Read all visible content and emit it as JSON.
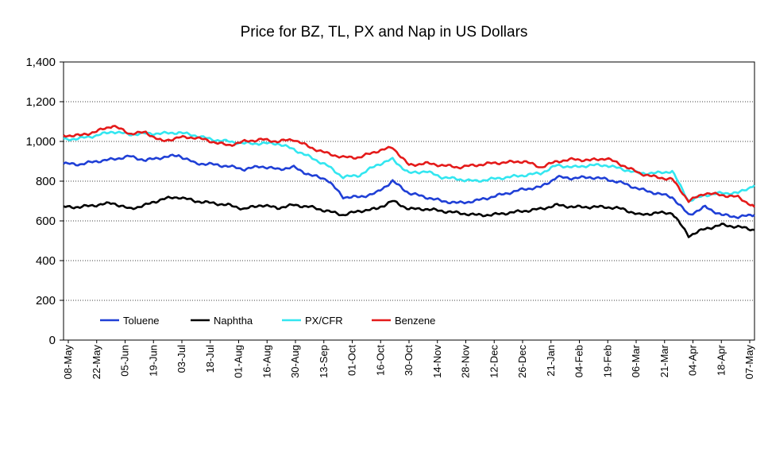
{
  "chart_data": {
    "type": "line",
    "title": "Price for BZ, TL, PX and Nap in US Dollars",
    "xlabel": "",
    "ylabel": "",
    "ylim": [
      0,
      1400
    ],
    "yticks": [
      "0",
      "200",
      "400",
      "600",
      "800",
      "1,000",
      "1,200",
      "1,400"
    ],
    "ytick_values": [
      0,
      200,
      400,
      600,
      800,
      1000,
      1200,
      1400
    ],
    "xticks": [
      "08-May",
      "22-May",
      "05-Jun",
      "19-Jun",
      "03-Jul",
      "18-Jul",
      "01-Aug",
      "16-Aug",
      "30-Aug",
      "13-Sep",
      "01-Oct",
      "16-Oct",
      "30-Oct",
      "14-Nov",
      "28-Nov",
      "12-Dec",
      "26-Dec",
      "21-Jan",
      "04-Feb",
      "19-Feb",
      "06-Mar",
      "21-Mar",
      "04-Apr",
      "18-Apr",
      "07-May"
    ],
    "grid": "horizontal dotted",
    "legend_position": "bottom-left inside",
    "series": [
      {
        "name": "Toluene",
        "color": "#1f3fd6",
        "values": [
          888,
          885,
          900,
          910,
          925,
          905,
          920,
          930,
          890,
          885,
          875,
          860,
          875,
          860,
          870,
          830,
          810,
          720,
          720,
          740,
          800,
          740,
          720,
          700,
          690,
          700,
          720,
          740,
          760,
          770,
          820,
          815,
          820,
          810,
          790,
          760,
          740,
          720,
          630,
          670,
          630,
          620,
          630
        ]
      },
      {
        "name": "Naphtha",
        "color": "#000000",
        "values": [
          670,
          670,
          680,
          690,
          660,
          680,
          710,
          720,
          700,
          690,
          680,
          660,
          680,
          665,
          680,
          670,
          650,
          630,
          650,
          660,
          700,
          660,
          660,
          650,
          640,
          630,
          630,
          640,
          650,
          660,
          680,
          670,
          670,
          670,
          660,
          630,
          640,
          640,
          525,
          560,
          580,
          570,
          555
        ]
      },
      {
        "name": "PX/CFR",
        "color": "#33e6f0",
        "values": [
          1010,
          1015,
          1030,
          1050,
          1035,
          1040,
          1040,
          1045,
          1030,
          1010,
          1000,
          990,
          990,
          990,
          960,
          920,
          880,
          820,
          830,
          880,
          910,
          840,
          850,
          820,
          810,
          800,
          810,
          820,
          830,
          840,
          880,
          870,
          880,
          880,
          860,
          840,
          840,
          850,
          700,
          730,
          740,
          740,
          780
        ]
      },
      {
        "name": "Benzene",
        "color": "#e41a1a",
        "values": [
          1030,
          1030,
          1050,
          1080,
          1040,
          1045,
          1000,
          1020,
          1020,
          1000,
          980,
          1000,
          1010,
          1000,
          1010,
          970,
          940,
          920,
          920,
          950,
          970,
          880,
          890,
          880,
          870,
          880,
          890,
          895,
          900,
          870,
          900,
          910,
          905,
          915,
          880,
          840,
          820,
          810,
          700,
          740,
          730,
          720,
          670
        ]
      }
    ]
  }
}
